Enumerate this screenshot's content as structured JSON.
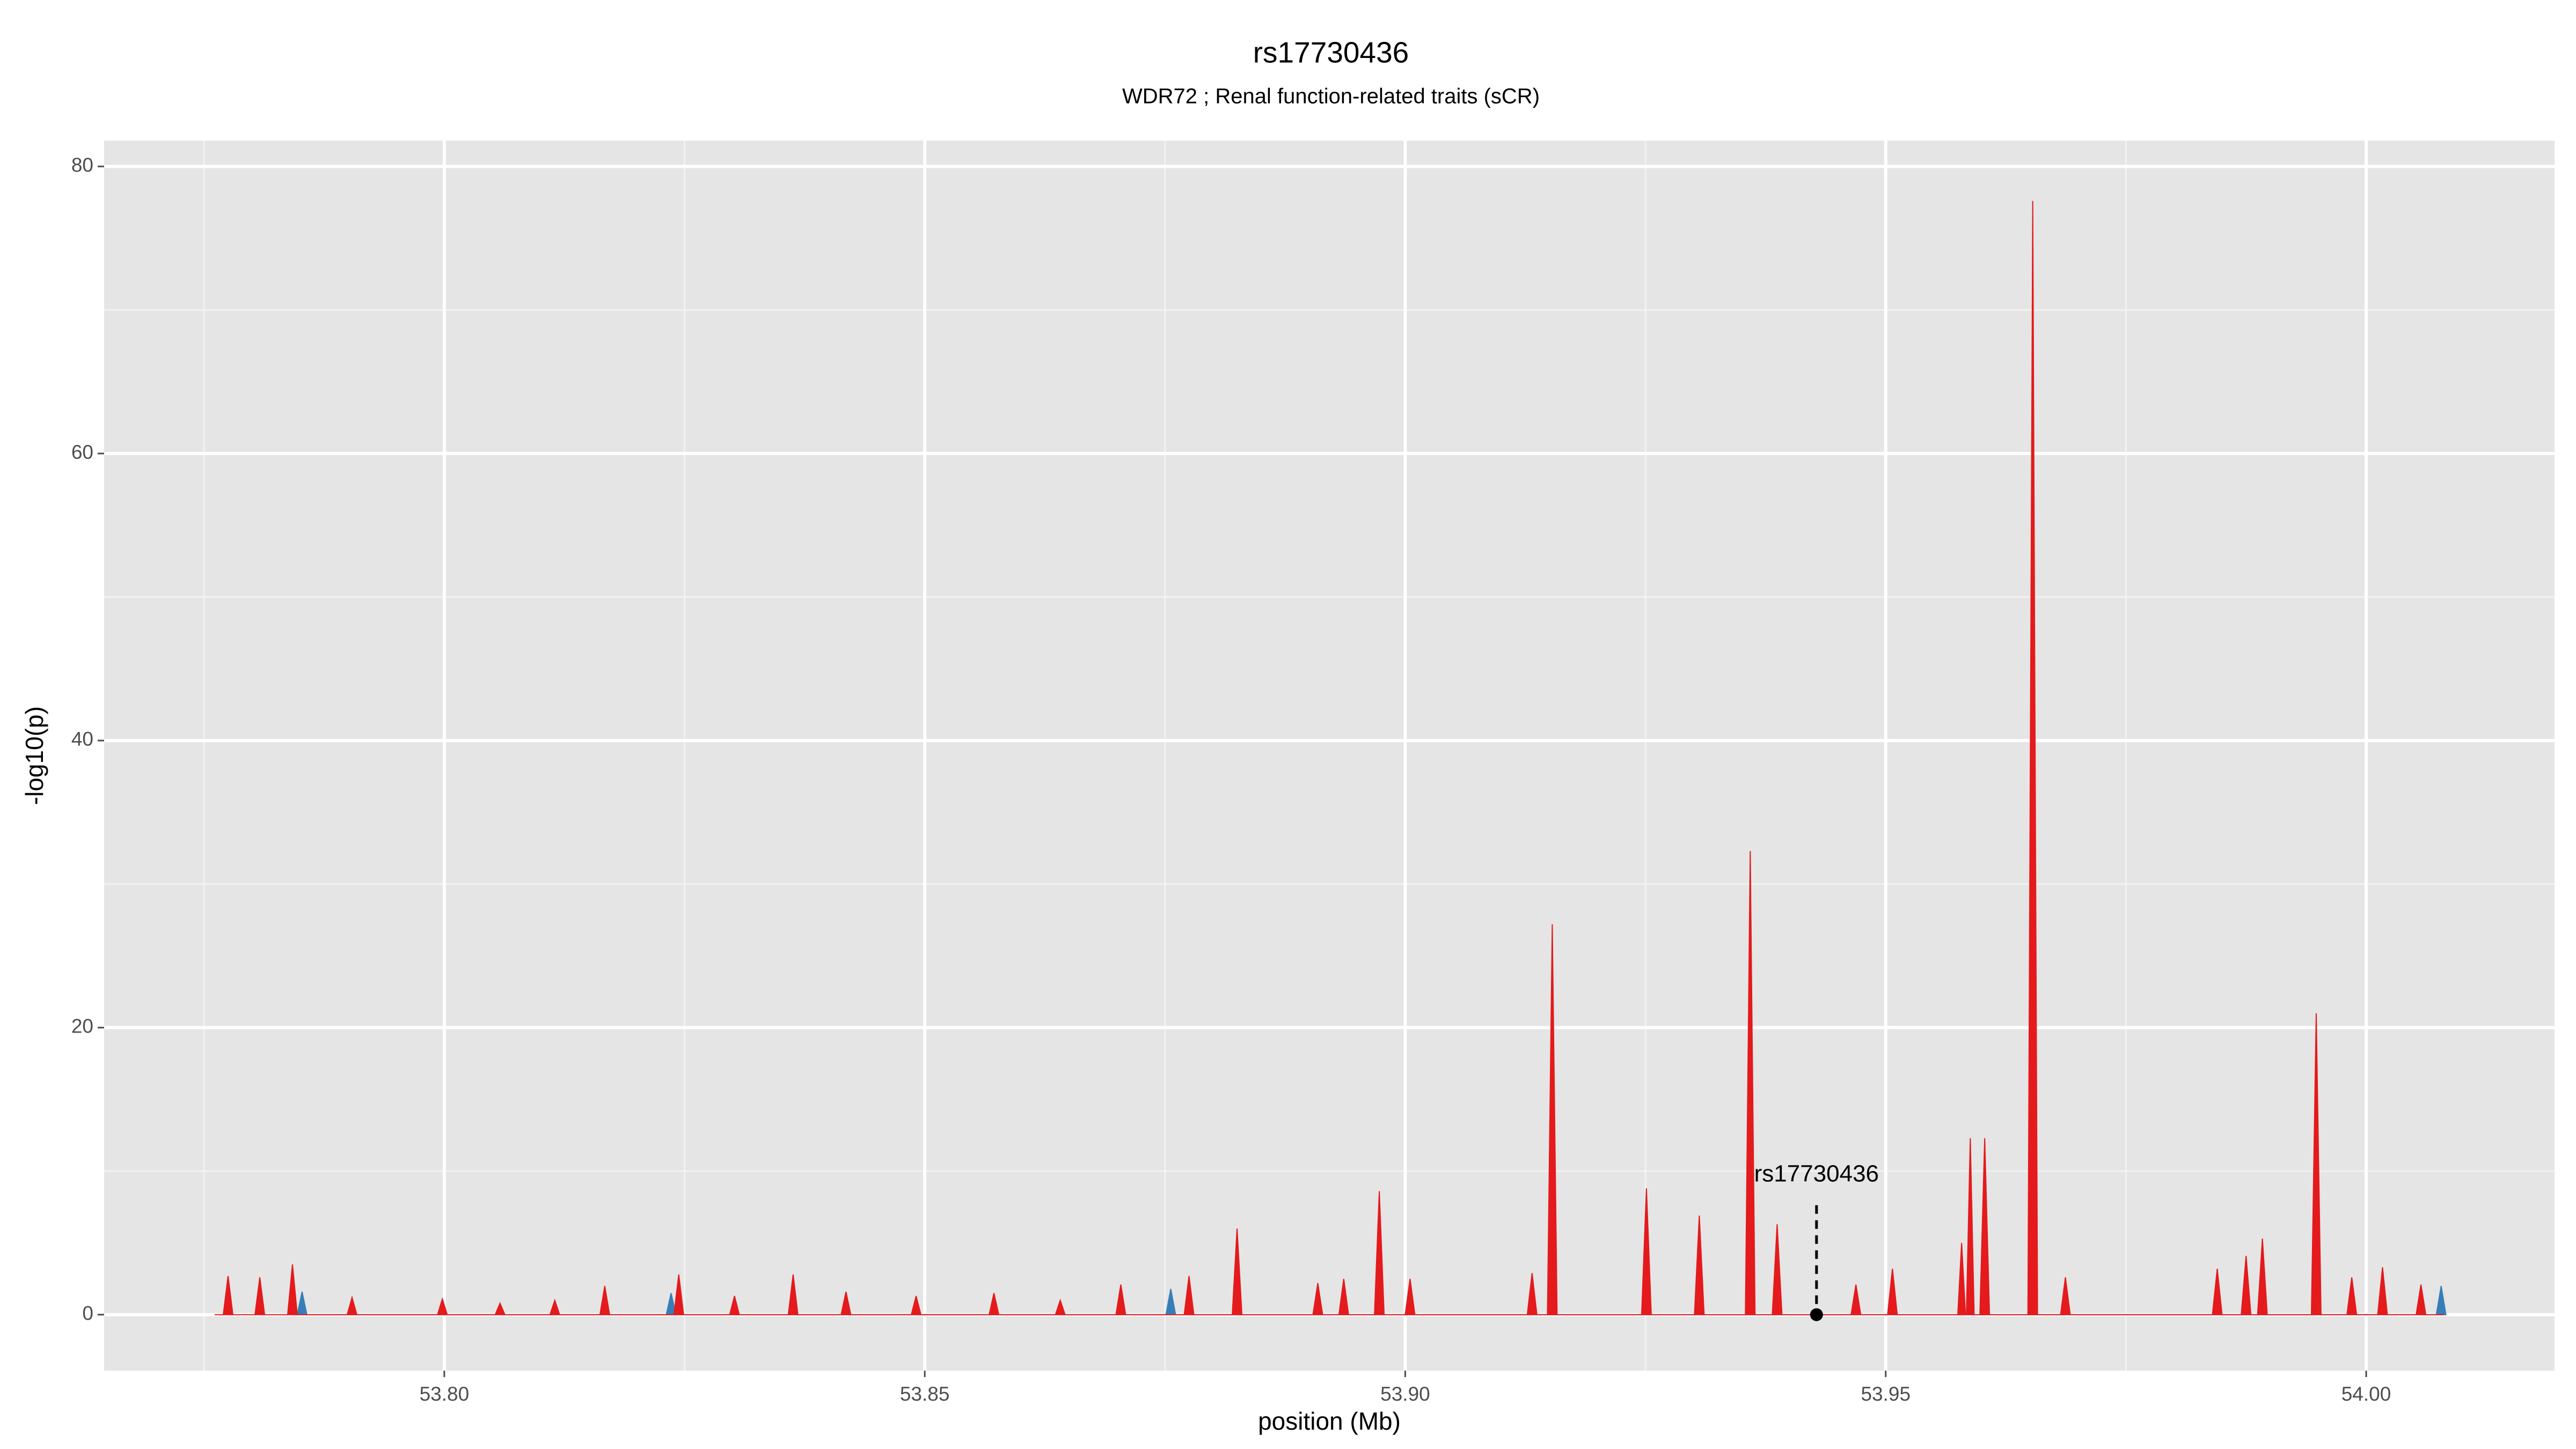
{
  "chart_data": {
    "type": "area",
    "title": "rs17730436",
    "subtitle": "WDR72 ; Renal function-related traits (sCR)",
    "xlabel": "position (Mb)",
    "ylabel": "-log10(p)",
    "xlim": [
      53.7646,
      54.0196
    ],
    "ylim": [
      -3.9,
      81.8
    ],
    "xticks": [
      {
        "value": 53.8,
        "label": "53.80"
      },
      {
        "value": 53.85,
        "label": "53.85"
      },
      {
        "value": 53.9,
        "label": "53.90"
      },
      {
        "value": 53.95,
        "label": "53.95"
      },
      {
        "value": 54.0,
        "label": "54.00"
      }
    ],
    "xminorticks": [
      53.775,
      53.825,
      53.875,
      53.925,
      53.975
    ],
    "yticks": [
      0,
      20,
      40,
      60,
      80
    ],
    "yminorticks": [
      10,
      30,
      50,
      70
    ],
    "grid": true,
    "series": [
      {
        "color": "#377eb8",
        "x": [
          53.7847,
          53.7852,
          53.7857,
          53.8231,
          53.8236,
          53.8241,
          53.8751,
          53.8756,
          53.8761,
          54.0073,
          54.0078,
          54.0083
        ],
        "values": [
          0,
          1.6,
          0,
          0,
          1.5,
          0,
          0,
          1.8,
          0,
          0,
          2.0,
          0
        ]
      },
      {
        "color": "#e41a1c",
        "x": [
          53.7761,
          53.777,
          53.7775,
          53.778,
          53.7803,
          53.7808,
          53.7813,
          53.7837,
          53.7842,
          53.7847,
          53.7899,
          53.7904,
          53.7909,
          53.7993,
          53.7998,
          53.8003,
          53.8053,
          53.8058,
          53.8063,
          53.811,
          53.8115,
          53.812,
          53.8162,
          53.8167,
          53.8172,
          53.8239,
          53.8244,
          53.8249,
          53.8297,
          53.8302,
          53.8307,
          53.8358,
          53.8363,
          53.8368,
          53.8413,
          53.8418,
          53.8423,
          53.8486,
          53.8491,
          53.8496,
          53.8567,
          53.8572,
          53.8577,
          53.8636,
          53.8641,
          53.8646,
          53.8699,
          53.8704,
          53.8709,
          53.877,
          53.8775,
          53.878,
          53.882,
          53.8825,
          53.883,
          53.8904,
          53.8909,
          53.8914,
          53.8931,
          53.8936,
          53.8941,
          53.8968,
          53.8973,
          53.8978,
          53.9,
          53.9005,
          53.901,
          53.9127,
          53.9132,
          53.9137,
          53.9148,
          53.9153,
          53.9158,
          53.9246,
          53.9251,
          53.9256,
          53.9301,
          53.9306,
          53.9311,
          53.9354,
          53.9359,
          53.9364,
          53.9382,
          53.9387,
          53.9392,
          53.9464,
          53.9469,
          53.9474,
          53.9502,
          53.9507,
          53.9512,
          53.9575,
          53.9579,
          53.9583,
          53.9584,
          53.9588,
          53.9592,
          53.9598,
          53.9603,
          53.9608,
          53.9648,
          53.9653,
          53.9658,
          53.9682,
          53.9687,
          53.9692,
          53.984,
          53.9845,
          53.985,
          53.987,
          53.9875,
          53.988,
          53.9887,
          53.9892,
          53.9897,
          53.9943,
          53.9948,
          53.9953,
          53.998,
          53.9985,
          53.999,
          54.0012,
          54.0017,
          54.0022,
          54.0052,
          54.0057,
          54.0062,
          54.0081
        ],
        "values": [
          0,
          0,
          2.7,
          0,
          0,
          2.6,
          0,
          0,
          3.5,
          0,
          0,
          1.2,
          0,
          0,
          1.1,
          0,
          0,
          0.8,
          0,
          0,
          1.0,
          0,
          0,
          2.0,
          0,
          0,
          2.8,
          0,
          0,
          1.3,
          0,
          0,
          2.8,
          0,
          0,
          1.6,
          0,
          0,
          1.3,
          0,
          0,
          1.5,
          0,
          0,
          1.0,
          0,
          0,
          2.1,
          0,
          0,
          2.7,
          0,
          0,
          6.0,
          0,
          0,
          2.2,
          0,
          0,
          2.5,
          0,
          0,
          8.6,
          0,
          0,
          2.5,
          0,
          0,
          2.9,
          0,
          0,
          27.2,
          0,
          0,
          8.8,
          0,
          0,
          6.9,
          0,
          0,
          32.3,
          0,
          0,
          6.3,
          0,
          0,
          2.1,
          0,
          0,
          3.2,
          0,
          0,
          5.0,
          0,
          0,
          12.3,
          0,
          0,
          12.3,
          0,
          0,
          77.6,
          0,
          0,
          2.6,
          0,
          0,
          3.2,
          0,
          0,
          4.1,
          0,
          0,
          5.3,
          0,
          0,
          21.0,
          0,
          0,
          2.6,
          0,
          0,
          3.3,
          0,
          0,
          2.1,
          0,
          0
        ]
      }
    ],
    "annotation": {
      "text": "rs17730436",
      "x": 53.9428,
      "y": 0
    }
  }
}
